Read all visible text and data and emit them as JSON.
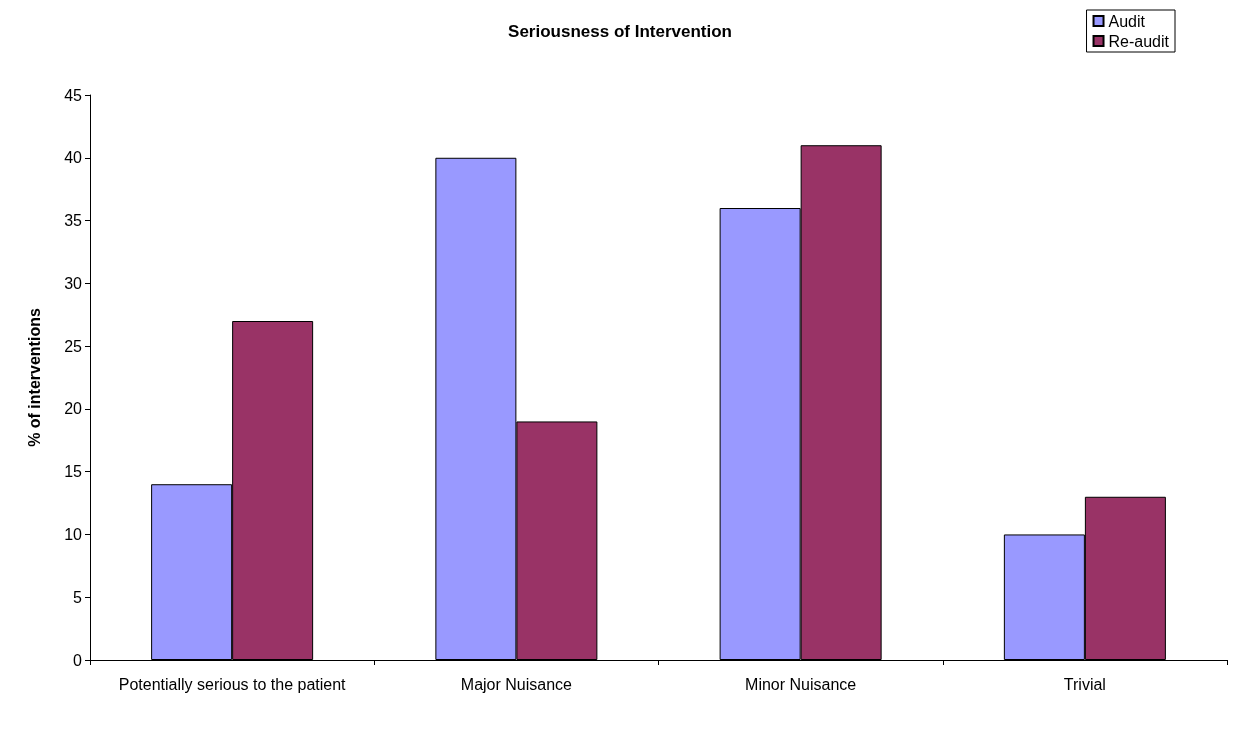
{
  "chart_data": {
    "type": "bar",
    "title": "Seriousness of Intervention",
    "ylabel": "% of interventions",
    "categories": [
      "Potentially serious to the patient",
      "Major Nuisance",
      "Minor Nuisance",
      "Trivial"
    ],
    "series": [
      {
        "name": "Audit",
        "color": "#9999ff",
        "values": [
          14,
          40,
          36,
          10
        ]
      },
      {
        "name": "Re-audit",
        "color": "#993366",
        "values": [
          27,
          19,
          41,
          13
        ]
      }
    ],
    "ylim": [
      0,
      45
    ],
    "yticks": [
      0,
      5,
      10,
      15,
      20,
      25,
      30,
      35,
      40,
      45
    ],
    "grid": false,
    "legend": "top right"
  }
}
